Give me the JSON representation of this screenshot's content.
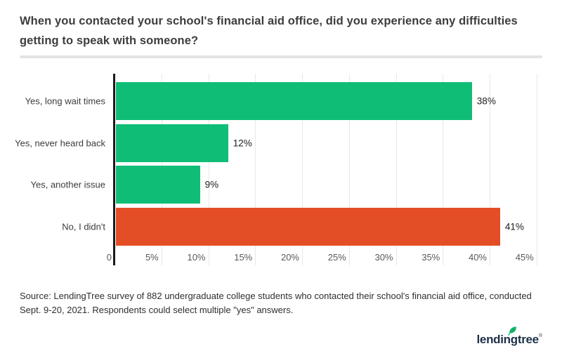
{
  "header": {
    "title": "When you contacted your school's financial aid office, did you experience any difficulties getting to speak with someone?"
  },
  "chart_data": {
    "type": "bar",
    "orientation": "horizontal",
    "title": "When you contacted your school's financial aid office, did you experience any difficulties getting to speak with someone?",
    "categories": [
      "Yes, long wait times",
      "Yes, never heard back",
      "Yes, another issue",
      "No, I didn't"
    ],
    "values": [
      38,
      12,
      9,
      41
    ],
    "value_labels": [
      "38%",
      "12%",
      "9%",
      "41%"
    ],
    "bar_colors": [
      "#10bd77",
      "#10bd77",
      "#10bd77",
      "#e34e26"
    ],
    "xlabel": "",
    "ylabel": "",
    "xlim": [
      0,
      47.5
    ],
    "x_ticks": [
      0,
      5,
      10,
      15,
      20,
      25,
      30,
      35,
      40,
      45
    ],
    "x_tick_labels": [
      "0",
      "5%",
      "10%",
      "15%",
      "20%",
      "25%",
      "30%",
      "35%",
      "40%",
      "45%"
    ],
    "grid": "vertical-on",
    "legend": "none"
  },
  "footer": {
    "source_text": "Source: LendingTree survey of 882 undergraduate college students who contacted their school's financial aid office, conducted Sept. 9-20, 2021. Respondents could select multiple \"yes\" answers.",
    "logo_text": "lendingtree",
    "logo_registered_mark": "®"
  },
  "colors": {
    "bar_green": "#10bd77",
    "bar_orange": "#e34e26",
    "axis": "#1a1a1a",
    "gridline": "#e8e8e8",
    "divider": "#e3e3e3",
    "title_text": "#3d3d3d",
    "logo_navy": "#1e3148",
    "leaf_green": "#13b269"
  }
}
